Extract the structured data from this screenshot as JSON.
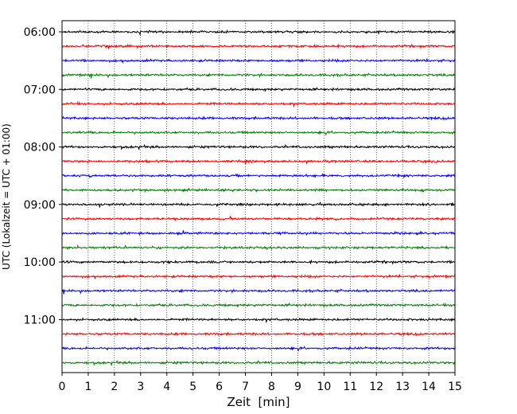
{
  "chart_data": {
    "type": "line",
    "subtype": "helicorder",
    "xlabel": "Zeit  [min]",
    "ylabel": "UTC (Lokalzeit = UTC + 01:00)",
    "xlim": [
      0,
      15
    ],
    "x_ticks": [
      "0",
      "1",
      "2",
      "3",
      "4",
      "5",
      "6",
      "7",
      "8",
      "9",
      "10",
      "11",
      "12",
      "13",
      "14",
      "15"
    ],
    "y_tick_labels": [
      "06:00",
      "07:00",
      "08:00",
      "09:00",
      "10:00",
      "11:00"
    ],
    "trace_interval_min": 15,
    "trace_start": "06:00",
    "trace_count": 24,
    "trace_colors": [
      "#000000",
      "#ff0000",
      "#0000ff",
      "#008000"
    ],
    "grid_x": true,
    "grid_style": "dotted",
    "traces": [
      {
        "start": "06:00",
        "color": "#000000"
      },
      {
        "start": "06:15",
        "color": "#ff0000"
      },
      {
        "start": "06:30",
        "color": "#0000ff"
      },
      {
        "start": "06:45",
        "color": "#008000"
      },
      {
        "start": "07:00",
        "color": "#000000"
      },
      {
        "start": "07:15",
        "color": "#ff0000"
      },
      {
        "start": "07:30",
        "color": "#0000ff"
      },
      {
        "start": "07:45",
        "color": "#008000"
      },
      {
        "start": "08:00",
        "color": "#000000"
      },
      {
        "start": "08:15",
        "color": "#ff0000"
      },
      {
        "start": "08:30",
        "color": "#0000ff"
      },
      {
        "start": "08:45",
        "color": "#008000"
      },
      {
        "start": "09:00",
        "color": "#000000"
      },
      {
        "start": "09:15",
        "color": "#ff0000"
      },
      {
        "start": "09:30",
        "color": "#0000ff"
      },
      {
        "start": "09:45",
        "color": "#008000"
      },
      {
        "start": "10:00",
        "color": "#000000"
      },
      {
        "start": "10:15",
        "color": "#ff0000"
      },
      {
        "start": "10:30",
        "color": "#0000ff"
      },
      {
        "start": "10:45",
        "color": "#008000"
      },
      {
        "start": "11:00",
        "color": "#000000"
      },
      {
        "start": "11:15",
        "color": "#ff0000"
      },
      {
        "start": "11:30",
        "color": "#0000ff"
      },
      {
        "start": "11:45",
        "color": "#008000"
      }
    ]
  }
}
